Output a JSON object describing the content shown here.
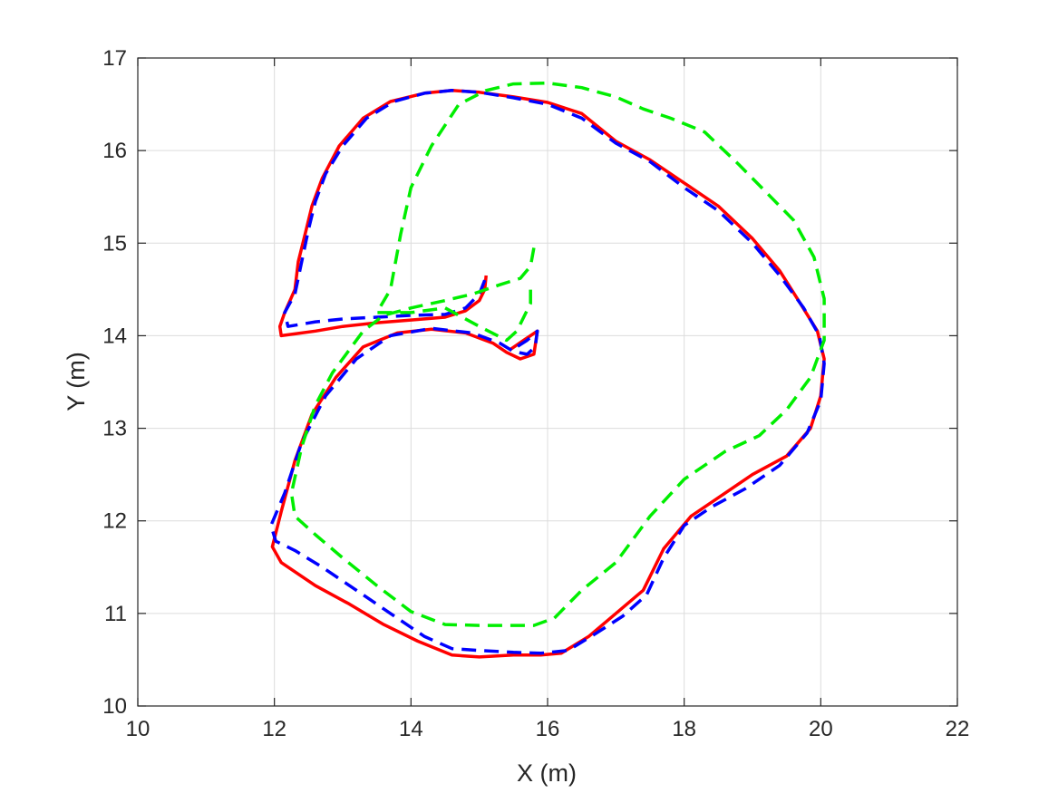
{
  "chart_data": {
    "type": "line",
    "title": "",
    "xlabel": "X (m)",
    "ylabel": "Y (m)",
    "xlim": [
      10,
      22
    ],
    "ylim": [
      10,
      17
    ],
    "xticks": [
      "10",
      "12",
      "14",
      "16",
      "18",
      "20",
      "22"
    ],
    "yticks": [
      "10",
      "11",
      "12",
      "13",
      "14",
      "15",
      "16",
      "17"
    ],
    "grid": true,
    "legend": "none",
    "series": [
      {
        "color": "#ff0000",
        "style": "solid",
        "points": [
          [
            15.1,
            14.65
          ],
          [
            15.08,
            14.5
          ],
          [
            15.0,
            14.38
          ],
          [
            14.8,
            14.27
          ],
          [
            14.5,
            14.2
          ],
          [
            14.0,
            14.17
          ],
          [
            13.5,
            14.14
          ],
          [
            13.0,
            14.1
          ],
          [
            12.6,
            14.05
          ],
          [
            12.3,
            14.02
          ],
          [
            12.1,
            14.0
          ],
          [
            12.08,
            14.1
          ],
          [
            12.15,
            14.25
          ],
          [
            12.3,
            14.5
          ],
          [
            12.35,
            14.8
          ],
          [
            12.45,
            15.1
          ],
          [
            12.55,
            15.4
          ],
          [
            12.7,
            15.7
          ],
          [
            12.95,
            16.05
          ],
          [
            13.3,
            16.35
          ],
          [
            13.7,
            16.53
          ],
          [
            14.2,
            16.62
          ],
          [
            14.6,
            16.65
          ],
          [
            15.0,
            16.63
          ],
          [
            15.5,
            16.58
          ],
          [
            16.0,
            16.52
          ],
          [
            16.5,
            16.4
          ],
          [
            17.0,
            16.1
          ],
          [
            17.5,
            15.9
          ],
          [
            18.0,
            15.65
          ],
          [
            18.5,
            15.4
          ],
          [
            19.0,
            15.05
          ],
          [
            19.4,
            14.7
          ],
          [
            19.7,
            14.35
          ],
          [
            19.95,
            14.05
          ],
          [
            20.05,
            13.75
          ],
          [
            20.0,
            13.35
          ],
          [
            19.85,
            13.0
          ],
          [
            19.5,
            12.7
          ],
          [
            19.0,
            12.5
          ],
          [
            18.5,
            12.25
          ],
          [
            18.1,
            12.05
          ],
          [
            17.7,
            11.7
          ],
          [
            17.4,
            11.25
          ],
          [
            17.0,
            11.0
          ],
          [
            16.6,
            10.75
          ],
          [
            16.2,
            10.57
          ],
          [
            15.9,
            10.55
          ],
          [
            15.5,
            10.55
          ],
          [
            15.0,
            10.53
          ],
          [
            14.6,
            10.55
          ],
          [
            14.1,
            10.7
          ],
          [
            13.6,
            10.88
          ],
          [
            13.1,
            11.1
          ],
          [
            12.6,
            11.3
          ],
          [
            12.1,
            11.55
          ],
          [
            11.97,
            11.72
          ],
          [
            12.1,
            12.1
          ],
          [
            12.3,
            12.65
          ],
          [
            12.55,
            13.15
          ],
          [
            12.9,
            13.55
          ],
          [
            13.3,
            13.88
          ],
          [
            13.8,
            14.03
          ],
          [
            14.3,
            14.07
          ],
          [
            14.8,
            14.03
          ],
          [
            15.2,
            13.92
          ],
          [
            15.4,
            13.82
          ],
          [
            15.6,
            13.75
          ],
          [
            15.8,
            13.8
          ],
          [
            15.85,
            14.05
          ],
          [
            15.65,
            13.95
          ],
          [
            15.45,
            13.85
          ]
        ]
      },
      {
        "color": "#0000ff",
        "style": "dashed",
        "points": [
          [
            15.08,
            14.6
          ],
          [
            15.0,
            14.45
          ],
          [
            14.8,
            14.3
          ],
          [
            14.5,
            14.23
          ],
          [
            14.0,
            14.22
          ],
          [
            13.5,
            14.2
          ],
          [
            13.0,
            14.18
          ],
          [
            12.6,
            14.15
          ],
          [
            12.2,
            14.1
          ],
          [
            12.15,
            14.25
          ],
          [
            12.3,
            14.45
          ],
          [
            12.4,
            14.8
          ],
          [
            12.5,
            15.15
          ],
          [
            12.6,
            15.45
          ],
          [
            12.75,
            15.75
          ],
          [
            13.0,
            16.05
          ],
          [
            13.35,
            16.35
          ],
          [
            13.75,
            16.53
          ],
          [
            14.2,
            16.62
          ],
          [
            14.6,
            16.65
          ],
          [
            15.0,
            16.63
          ],
          [
            15.5,
            16.57
          ],
          [
            16.0,
            16.5
          ],
          [
            16.5,
            16.35
          ],
          [
            17.0,
            16.08
          ],
          [
            17.5,
            15.88
          ],
          [
            18.0,
            15.6
          ],
          [
            18.5,
            15.35
          ],
          [
            19.0,
            15.0
          ],
          [
            19.4,
            14.65
          ],
          [
            19.75,
            14.3
          ],
          [
            19.98,
            14.0
          ],
          [
            20.05,
            13.7
          ],
          [
            20.0,
            13.3
          ],
          [
            19.8,
            12.95
          ],
          [
            19.4,
            12.6
          ],
          [
            18.9,
            12.35
          ],
          [
            18.4,
            12.15
          ],
          [
            18.0,
            11.95
          ],
          [
            17.7,
            11.6
          ],
          [
            17.45,
            11.2
          ],
          [
            17.1,
            10.97
          ],
          [
            16.7,
            10.78
          ],
          [
            16.3,
            10.6
          ],
          [
            15.9,
            10.57
          ],
          [
            15.5,
            10.58
          ],
          [
            15.0,
            10.6
          ],
          [
            14.6,
            10.62
          ],
          [
            14.2,
            10.75
          ],
          [
            13.7,
            11.0
          ],
          [
            13.2,
            11.25
          ],
          [
            12.7,
            11.5
          ],
          [
            12.3,
            11.68
          ],
          [
            12.02,
            11.78
          ],
          [
            11.95,
            11.95
          ],
          [
            12.15,
            12.3
          ],
          [
            12.4,
            12.85
          ],
          [
            12.75,
            13.35
          ],
          [
            13.2,
            13.75
          ],
          [
            13.7,
            14.0
          ],
          [
            14.3,
            14.08
          ],
          [
            14.9,
            14.03
          ],
          [
            15.3,
            13.92
          ],
          [
            15.5,
            13.83
          ],
          [
            15.7,
            13.8
          ],
          [
            15.82,
            13.88
          ],
          [
            15.85,
            14.05
          ],
          [
            15.7,
            13.95
          ],
          [
            15.55,
            13.88
          ]
        ]
      },
      {
        "color": "#00ee00",
        "style": "dashed",
        "points": [
          [
            15.8,
            14.95
          ],
          [
            15.75,
            14.75
          ],
          [
            15.6,
            14.62
          ],
          [
            15.3,
            14.55
          ],
          [
            14.9,
            14.45
          ],
          [
            14.5,
            14.38
          ],
          [
            14.0,
            14.3
          ],
          [
            13.6,
            14.22
          ],
          [
            13.3,
            14.05
          ],
          [
            13.1,
            13.85
          ],
          [
            12.85,
            13.6
          ],
          [
            12.6,
            13.25
          ],
          [
            12.4,
            12.8
          ],
          [
            12.25,
            12.3
          ],
          [
            12.3,
            12.05
          ],
          [
            12.6,
            11.85
          ],
          [
            13.0,
            11.6
          ],
          [
            13.5,
            11.3
          ],
          [
            14.0,
            11.02
          ],
          [
            14.5,
            10.88
          ],
          [
            15.0,
            10.87
          ],
          [
            15.4,
            10.87
          ],
          [
            15.8,
            10.87
          ],
          [
            16.1,
            10.95
          ],
          [
            16.5,
            11.25
          ],
          [
            17.0,
            11.55
          ],
          [
            17.5,
            12.05
          ],
          [
            18.0,
            12.45
          ],
          [
            18.6,
            12.75
          ],
          [
            19.1,
            12.92
          ],
          [
            19.5,
            13.2
          ],
          [
            19.85,
            13.55
          ],
          [
            20.05,
            13.95
          ],
          [
            20.05,
            14.4
          ],
          [
            19.9,
            14.85
          ],
          [
            19.6,
            15.25
          ],
          [
            19.2,
            15.55
          ],
          [
            18.8,
            15.85
          ],
          [
            18.3,
            16.2
          ],
          [
            17.8,
            16.35
          ],
          [
            17.4,
            16.45
          ],
          [
            17.0,
            16.58
          ],
          [
            16.5,
            16.68
          ],
          [
            16.0,
            16.73
          ],
          [
            15.5,
            16.72
          ],
          [
            15.1,
            16.65
          ],
          [
            14.7,
            16.5
          ],
          [
            14.3,
            16.05
          ],
          [
            14.0,
            15.6
          ],
          [
            13.85,
            15.1
          ],
          [
            13.7,
            14.5
          ],
          [
            13.5,
            14.25
          ],
          [
            14.0,
            14.25
          ],
          [
            14.5,
            14.3
          ],
          [
            15.0,
            14.1
          ],
          [
            15.4,
            13.95
          ],
          [
            15.55,
            14.05
          ],
          [
            15.75,
            14.35
          ],
          [
            15.75,
            14.55
          ]
        ]
      }
    ]
  }
}
